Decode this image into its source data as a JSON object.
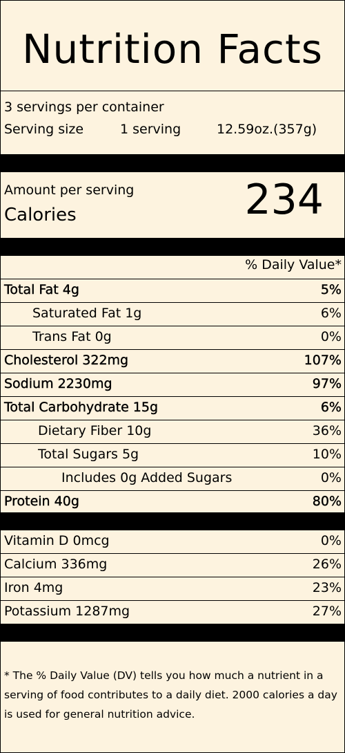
{
  "title": "Nutrition Facts",
  "servings_per_container": "3 servings per container",
  "serving_size": {
    "label": "Serving size",
    "amount": "1 serving",
    "weight": "12.59oz.(357g)"
  },
  "calories": {
    "amount_per_serving": "Amount per serving",
    "label": "Calories",
    "value": "234"
  },
  "dv_header": "% Daily Value*",
  "nutrients": [
    {
      "name": "Total Fat 4g",
      "pct": "5%",
      "bold": true,
      "indent": 0
    },
    {
      "name": "Saturated Fat 1g",
      "pct": "6%",
      "bold": false,
      "indent": 1
    },
    {
      "name": "Trans Fat 0g",
      "pct": "0%",
      "bold": false,
      "indent": 1
    },
    {
      "name": "Cholesterol 322mg",
      "pct": "107%",
      "bold": true,
      "indent": 0
    },
    {
      "name": "Sodium 2230mg",
      "pct": "97%",
      "bold": true,
      "indent": 0
    },
    {
      "name": "Total Carbohydrate 15g",
      "pct": "6%",
      "bold": true,
      "indent": 0
    },
    {
      "name": "Dietary Fiber 10g",
      "pct": "36%",
      "bold": false,
      "indent": 2
    },
    {
      "name": "Total Sugars 5g",
      "pct": "10%",
      "bold": false,
      "indent": 2
    },
    {
      "name": "Includes 0g Added Sugars",
      "pct": "0%",
      "bold": false,
      "indent": 3
    },
    {
      "name": "Protein 40g",
      "pct": "80%",
      "bold": true,
      "indent": 0
    }
  ],
  "vitamins": [
    {
      "name": "Vitamin D 0mcg",
      "pct": "0%"
    },
    {
      "name": "Calcium 336mg",
      "pct": "26%"
    },
    {
      "name": "Iron 4mg",
      "pct": "23%"
    },
    {
      "name": "Potassium 1287mg",
      "pct": "27%"
    }
  ],
  "footnote": "* The % Daily Value (DV) tells you how much a nutrient in a serving of food contributes to a daily diet. 2000 calories a day is used for general nutrition advice."
}
